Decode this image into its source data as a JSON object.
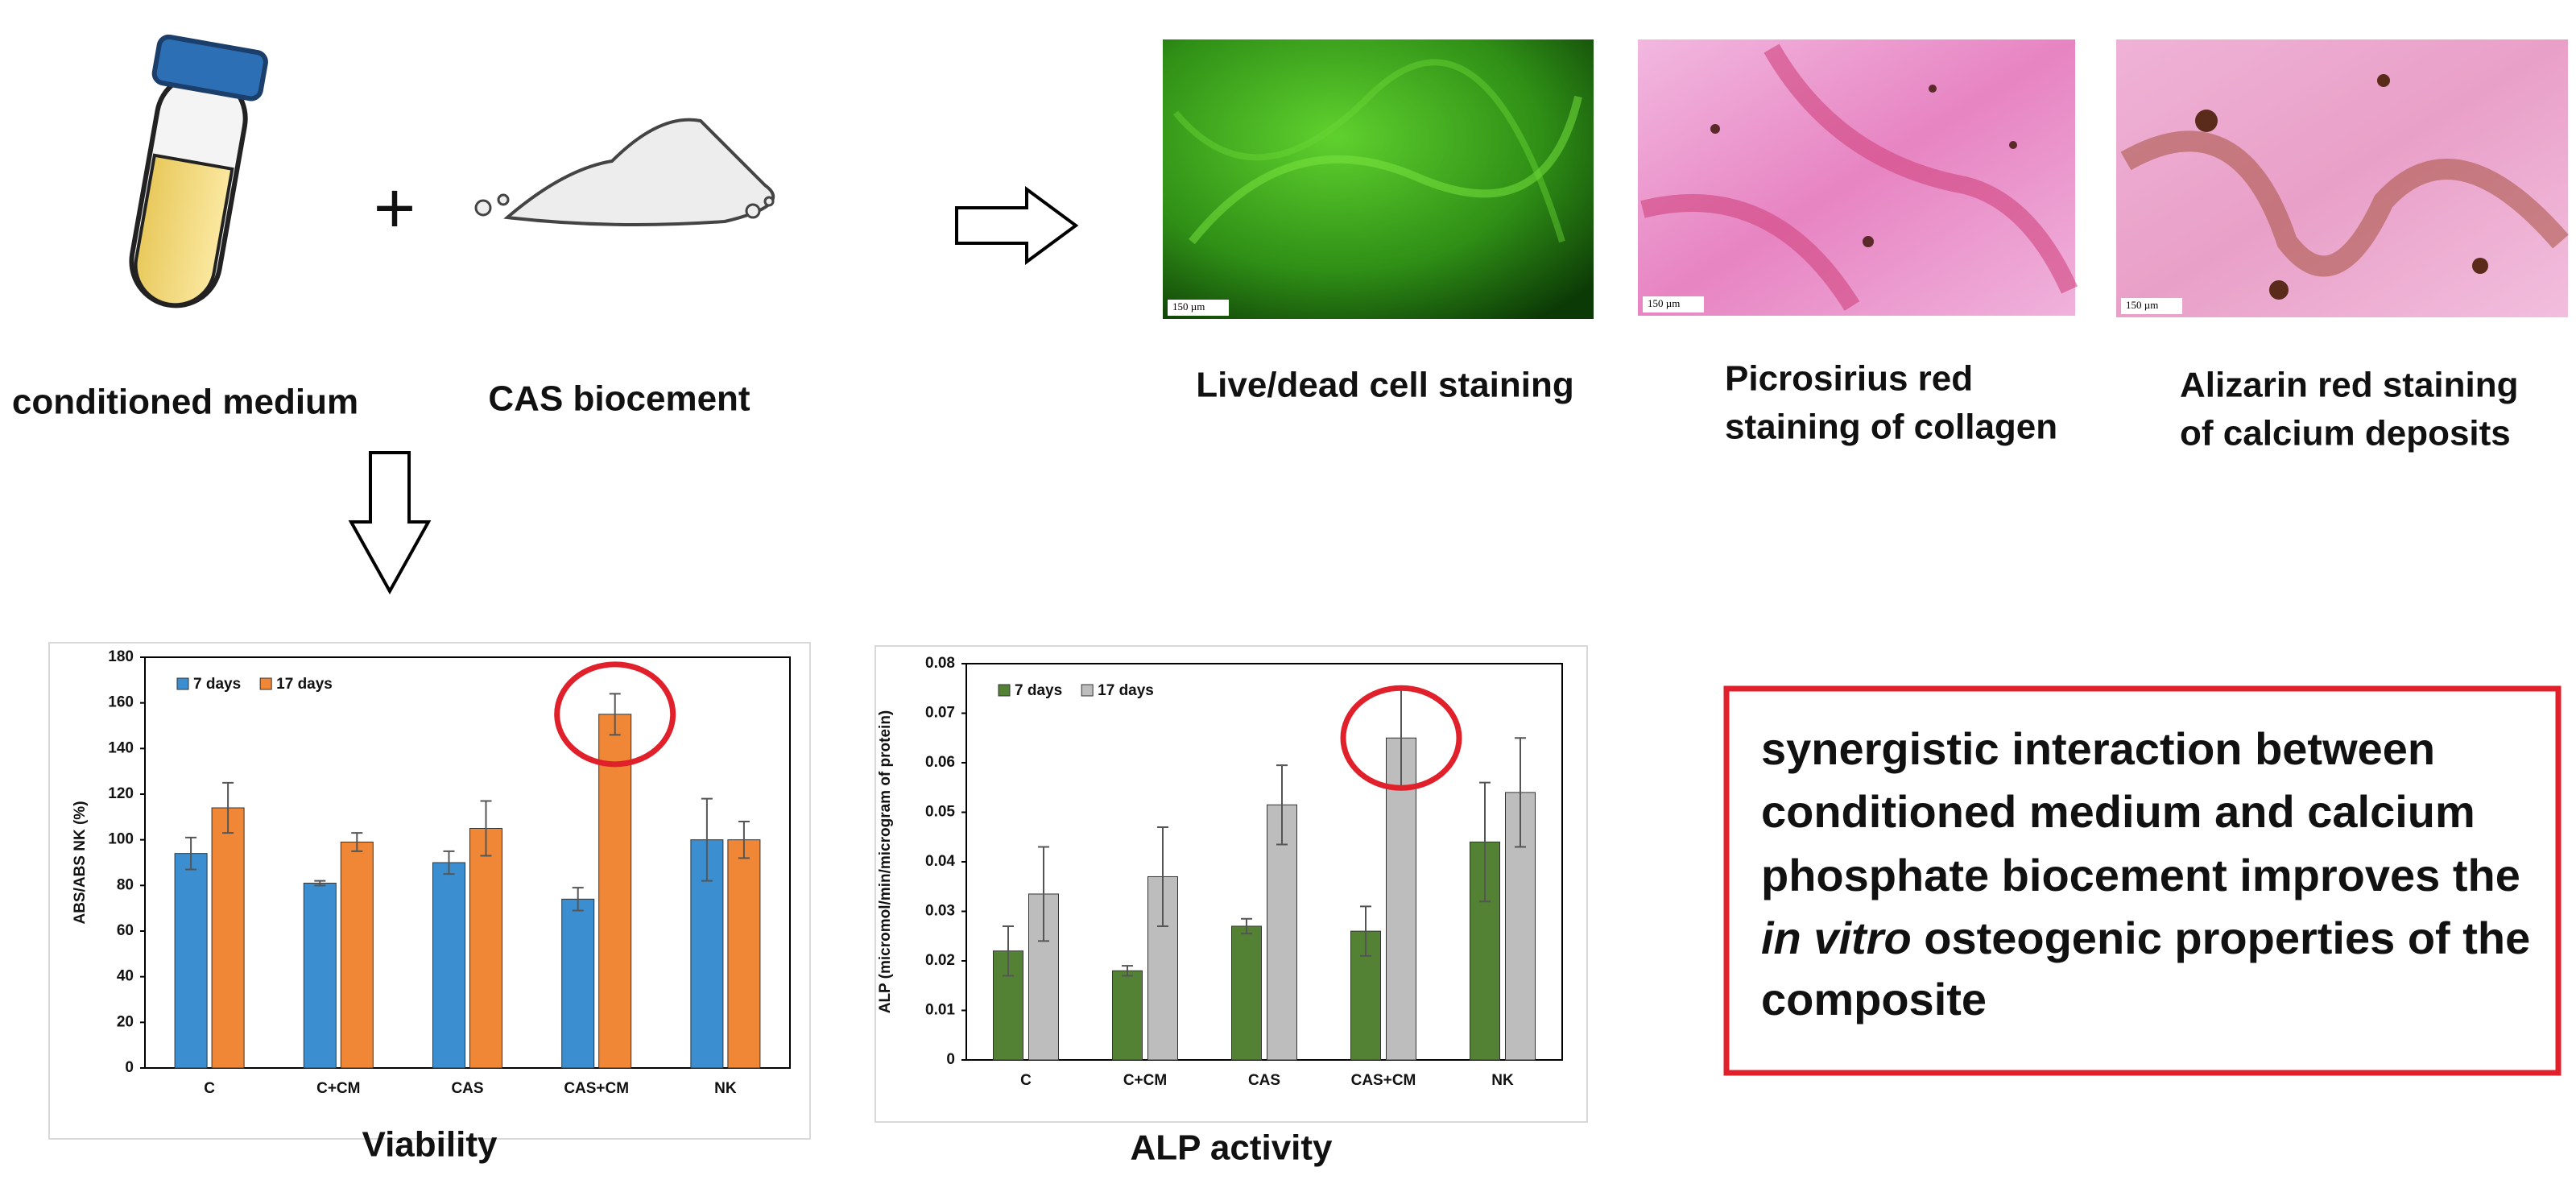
{
  "inputs": {
    "medium": "conditioned medium",
    "cement": "CAS biocement",
    "plus": "+"
  },
  "images": [
    {
      "caption": [
        "Live/dead cell staining"
      ],
      "scale": "150 µm"
    },
    {
      "caption": [
        "Picrosirius red",
        "staining of collagen"
      ],
      "scale": "150 µm"
    },
    {
      "caption": [
        "Alizarin red staining",
        "of calcium deposits"
      ],
      "scale": "150 µm"
    }
  ],
  "conclusion": {
    "lines": [
      "synergistic interaction between",
      "conditioned medium and calcium",
      "phosphate biocement improves the"
    ],
    "italic": "in vitro",
    "rest": " osteogenic properties of the",
    "last": "composite"
  },
  "chart_data": [
    {
      "type": "bar",
      "title": "Viability",
      "ylabel": "ABS/ABS NK (%)",
      "categories": [
        "C",
        "C+CM",
        "CAS",
        "CAS+CM",
        "NK"
      ],
      "series": [
        {
          "name": "7 days",
          "color": "#3b8fd0",
          "values": [
            94,
            81,
            90,
            74,
            100
          ],
          "errors": [
            7,
            1,
            5,
            5,
            18
          ]
        },
        {
          "name": "17 days",
          "color": "#ef8737",
          "values": [
            114,
            99,
            105,
            155,
            100
          ],
          "errors": [
            11,
            4,
            12,
            9,
            8
          ]
        }
      ],
      "ylim": [
        0,
        180
      ],
      "yticks": [
        0,
        20,
        40,
        60,
        80,
        100,
        120,
        140,
        160,
        180
      ],
      "legend": "upper left"
    },
    {
      "type": "bar",
      "title": "ALP activity",
      "ylabel": "ALP (micromol/min/microgram of protein)",
      "categories": [
        "C",
        "C+CM",
        "CAS",
        "CAS+CM",
        "NK"
      ],
      "series": [
        {
          "name": "7 days",
          "color": "#548235",
          "values": [
            0.022,
            0.018,
            0.027,
            0.026,
            0.044
          ],
          "errors": [
            0.005,
            0.001,
            0.0015,
            0.005,
            0.012
          ]
        },
        {
          "name": "17 days",
          "color": "#bdbdbd",
          "values": [
            0.0335,
            0.037,
            0.0515,
            0.065,
            0.054
          ],
          "errors": [
            0.0095,
            0.01,
            0.008,
            0.01,
            0.011
          ]
        }
      ],
      "ylim": [
        0,
        0.08
      ],
      "yticks": [
        0,
        0.01,
        0.02,
        0.03,
        0.04,
        0.05,
        0.06,
        0.07,
        0.08
      ],
      "legend": "upper left"
    }
  ]
}
